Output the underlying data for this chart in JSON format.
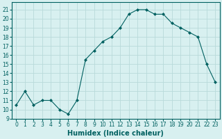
{
  "x": [
    0,
    1,
    2,
    3,
    4,
    5,
    6,
    7,
    8,
    9,
    10,
    11,
    12,
    13,
    14,
    15,
    16,
    17,
    18,
    19,
    20,
    21,
    22,
    23
  ],
  "y": [
    10.5,
    12,
    10.5,
    11,
    11,
    10.0,
    9.5,
    11,
    15.5,
    16.5,
    17.5,
    18,
    19,
    20.5,
    21,
    21,
    20.5,
    20.5,
    19.5,
    19.0,
    18.5,
    18,
    15,
    13
  ],
  "line_color": "#006060",
  "marker": "D",
  "marker_size": 2,
  "background_color": "#d8f0f0",
  "grid_color": "#b8dada",
  "xlabel": "Humidex (Indice chaleur)",
  "xlabel_fontsize": 7,
  "xlim": [
    -0.5,
    23.5
  ],
  "ylim": [
    9,
    21.8
  ],
  "yticks": [
    9,
    10,
    11,
    12,
    13,
    14,
    15,
    16,
    17,
    18,
    19,
    20,
    21
  ],
  "xticks": [
    0,
    1,
    2,
    3,
    4,
    5,
    6,
    7,
    8,
    9,
    10,
    11,
    12,
    13,
    14,
    15,
    16,
    17,
    18,
    19,
    20,
    21,
    22,
    23
  ],
  "tick_fontsize": 5.5,
  "linewidth": 0.8
}
